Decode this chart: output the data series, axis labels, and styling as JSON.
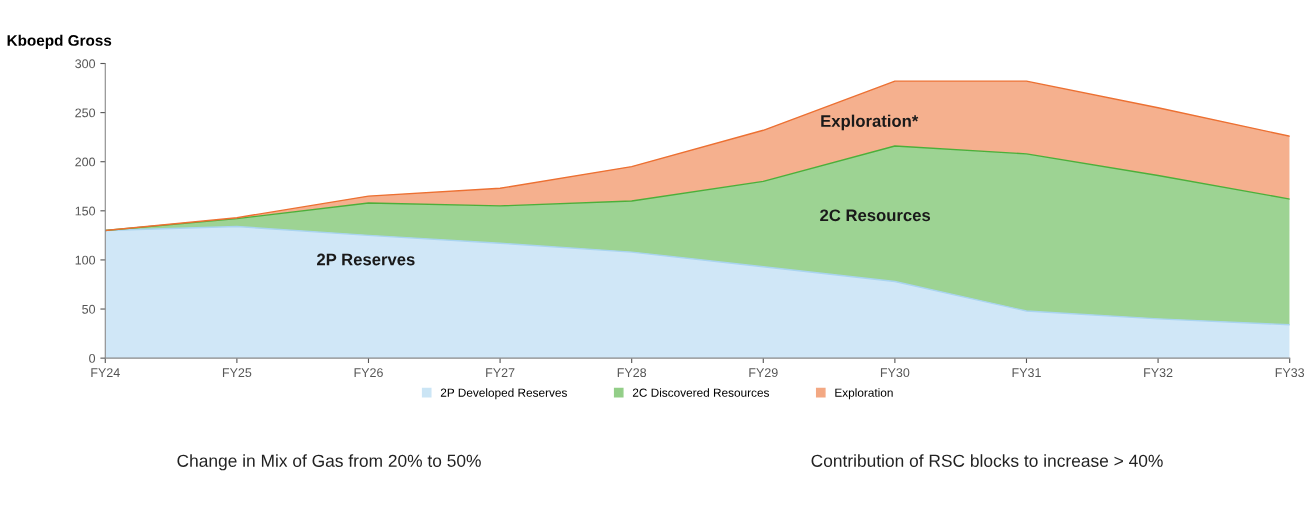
{
  "chart_data": {
    "type": "area",
    "stacked": true,
    "title": "Kboepd Gross",
    "categories": [
      "FY24",
      "FY25",
      "FY26",
      "FY27",
      "FY28",
      "FY29",
      "FY30",
      "FY31",
      "FY32",
      "FY33"
    ],
    "series": [
      {
        "name": "2P Developed Reserves",
        "color": "#a9d4f0",
        "values": [
          130,
          134,
          125,
          117,
          108,
          93,
          78,
          48,
          40,
          34
        ]
      },
      {
        "name": "2C Discovered Resources",
        "color": "#4caf3a",
        "values": [
          0,
          8,
          33,
          38,
          52,
          87,
          138,
          160,
          146,
          128
        ]
      },
      {
        "name": "Exploration",
        "color": "#ec7032",
        "values": [
          0,
          1,
          7,
          18,
          35,
          52,
          66,
          74,
          69,
          64
        ]
      }
    ],
    "ylim": [
      0,
      300
    ],
    "yticks": [
      0,
      50,
      100,
      150,
      200,
      250,
      300
    ],
    "grid": false,
    "legend": "bottom",
    "annotations": [
      "2P Reserves",
      "2C Resources",
      "Exploration*",
      "Change in Mix of Gas from 20% to 50%",
      "Contribution of RSC blocks to increase > 40%"
    ]
  }
}
